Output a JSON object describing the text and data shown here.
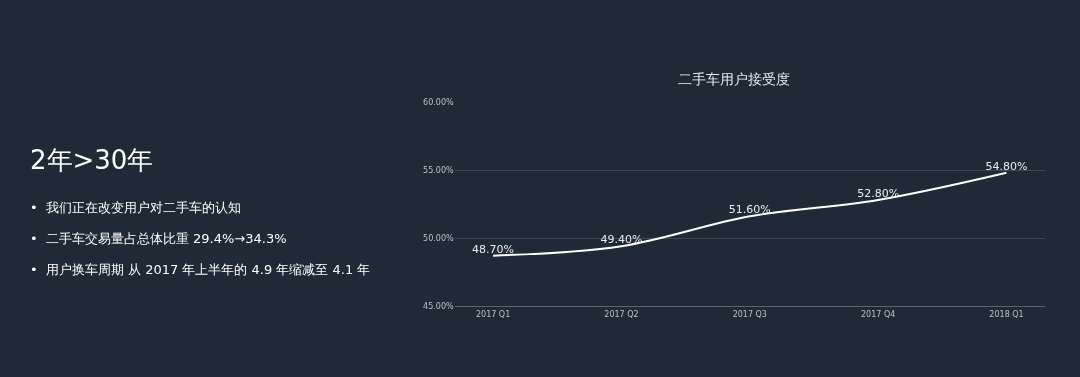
{
  "chart_data": {
    "type": "line",
    "title": "二手车用户接受度",
    "categories": [
      "2017 Q1",
      "2017 Q2",
      "2017 Q3",
      "2017 Q4",
      "2018 Q1"
    ],
    "values": [
      48.7,
      49.4,
      51.6,
      52.8,
      54.8
    ],
    "value_labels": [
      "48.70%",
      "49.40%",
      "51.60%",
      "52.80%",
      "54.80%"
    ],
    "color": "#ffffff",
    "ylim": [
      45,
      60
    ],
    "yticks": [
      {
        "value": 45,
        "label": "45.00%"
      },
      {
        "value": 50,
        "label": "50.00%"
      },
      {
        "value": 55,
        "label": "55.00%"
      },
      {
        "value": 60,
        "label": "60.00%"
      }
    ],
    "grid": "y",
    "annotations": [
      "2年>30年",
      "•  我们正在改变用户对二手车的认知",
      "•  二手车交易量占总体比重 29.4%→34.3%",
      "•  用户换车周期 从 2017 年上半年的 4.9 年缩减至 4.1 年"
    ]
  }
}
